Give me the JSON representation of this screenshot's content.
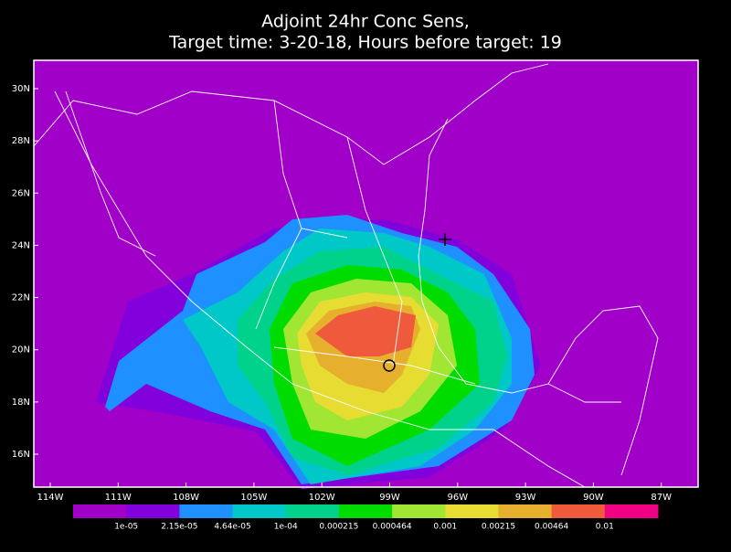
{
  "title": {
    "line1": "Adjoint 24hr Conc Sens,",
    "line2": "Target time: 3-20-18, Hours before target: 19"
  },
  "map": {
    "lon_labels": [
      "114W",
      "111W",
      "108W",
      "105W",
      "102W",
      "99W",
      "96W",
      "93W",
      "90W",
      "87W"
    ],
    "lat_labels": [
      "30N",
      "28N",
      "26N",
      "24N",
      "22N",
      "20N",
      "18N",
      "16N"
    ]
  },
  "colorbar": {
    "colors": [
      "#a000c8",
      "#8200dc",
      "#1e90ff",
      "#00c8c8",
      "#00d28c",
      "#00dc00",
      "#a0e632",
      "#e6dc32",
      "#e6af2d",
      "#f05a3c",
      "#f00082"
    ],
    "labels": [
      "1e-05",
      "2.15e-05",
      "4.64e-05",
      "1e-04",
      "0.000215",
      "0.000464",
      "0.001",
      "0.00215",
      "0.00464",
      "0.01"
    ]
  }
}
